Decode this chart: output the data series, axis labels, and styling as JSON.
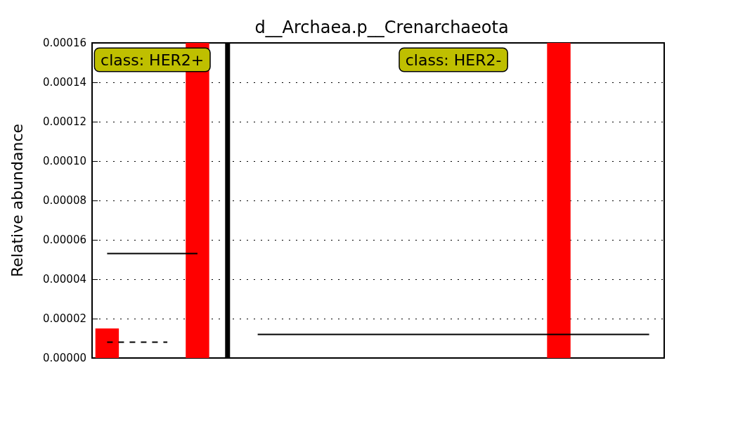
{
  "chart_data": {
    "type": "bar",
    "title": "d__Archaea.p__Crenarchaeota",
    "ylabel": "Relative abundance",
    "categories": [
      null,
      null,
      null,
      null,
      null,
      null,
      null,
      null,
      null,
      null,
      null,
      null,
      null,
      null,
      null,
      null,
      null,
      null,
      null
    ],
    "series": [
      {
        "color": "#ff0000",
        "values": [
          1.5e-05,
          null,
          null,
          0.00016,
          null,
          null,
          null,
          null,
          null,
          null,
          null,
          null,
          null,
          null,
          null,
          0.00016,
          null,
          null,
          null
        ]
      },
      {
        "color": "#000000",
        "values": [
          null,
          null,
          null,
          null,
          0.00016,
          null,
          null,
          null,
          null,
          null,
          null,
          null,
          null,
          null,
          null,
          null,
          null,
          null,
          null
        ]
      },
      {
        "type": "line",
        "color": "#000000",
        "line_style": "solid",
        "values": [
          5.3e-05,
          5.3e-05,
          5.3e-05,
          5.3e-05,
          null,
          null,
          null,
          null,
          null,
          null,
          null,
          null,
          null,
          null,
          null,
          null,
          null,
          null,
          null
        ]
      },
      {
        "type": "line",
        "color": "#000000",
        "line_style": "dashed",
        "values": [
          8e-06,
          8e-06,
          8e-06,
          null,
          null,
          null,
          null,
          null,
          null,
          null,
          null,
          null,
          null,
          null,
          null,
          null,
          null,
          null,
          null
        ]
      },
      {
        "type": "line",
        "color": "#000000",
        "line_style": "solid",
        "values": [
          null,
          null,
          null,
          null,
          null,
          1.2e-05,
          1.2e-05,
          1.2e-05,
          1.2e-05,
          1.2e-05,
          1.2e-05,
          1.2e-05,
          1.2e-05,
          1.2e-05,
          1.2e-05,
          1.2e-05,
          1.2e-05,
          1.2e-05,
          1.2e-05
        ]
      }
    ],
    "ylim": [
      0,
      0.00016
    ],
    "yticks": [
      {
        "value": 0,
        "label": "0.00000"
      },
      {
        "value": 2e-05,
        "label": "0.00002"
      },
      {
        "value": 4e-05,
        "label": "0.00004"
      },
      {
        "value": 6e-05,
        "label": "0.00006"
      },
      {
        "value": 8e-05,
        "label": "0.00008"
      },
      {
        "value": 0.0001,
        "label": "0.00010"
      },
      {
        "value": 0.00012,
        "label": "0.00012"
      },
      {
        "value": 0.00014,
        "label": "0.00014"
      },
      {
        "value": 0.00016,
        "label": "0.00016"
      }
    ],
    "annotations": [
      "class: HER2+",
      "class: HER2-"
    ],
    "grid": "y",
    "tick_labels": "y",
    "marker": "none"
  }
}
